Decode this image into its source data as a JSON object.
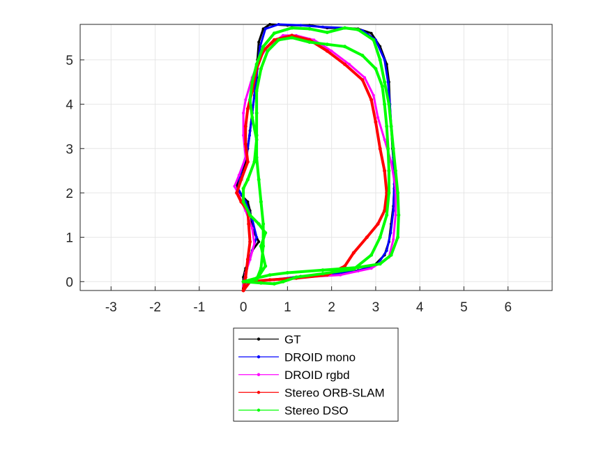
{
  "chart_data": {
    "type": "line",
    "title": "",
    "xlabel": "",
    "ylabel": "",
    "xlim": [
      -3.7,
      7.0
    ],
    "ylim": [
      -0.2,
      5.8
    ],
    "grid": true,
    "legend_position": "below-plot",
    "xticks": [
      -3,
      -2,
      -1,
      0,
      1,
      2,
      3,
      4,
      5,
      6
    ],
    "yticks": [
      0,
      1,
      2,
      3,
      4,
      5
    ],
    "xtick_labels": [
      "-3",
      "-2",
      "-1",
      "0",
      "1",
      "2",
      "3",
      "4",
      "5",
      "6"
    ],
    "ytick_labels": [
      "0",
      "1",
      "2",
      "3",
      "4",
      "5"
    ],
    "series": [
      {
        "name": "GT",
        "color": "#000000",
        "marker": "dot",
        "points": [
          [
            0.0,
            -0.15
          ],
          [
            0.0,
            0.1
          ],
          [
            0.05,
            0.3
          ],
          [
            0.15,
            0.5
          ],
          [
            0.2,
            0.7
          ],
          [
            0.35,
            0.9
          ],
          [
            0.25,
            1.1
          ],
          [
            0.2,
            1.3
          ],
          [
            0.15,
            1.6
          ],
          [
            0.1,
            1.8
          ],
          [
            -0.1,
            2.0
          ],
          [
            -0.15,
            2.2
          ],
          [
            -0.05,
            2.4
          ],
          [
            0.05,
            2.7
          ],
          [
            0.1,
            3.0
          ],
          [
            0.15,
            3.4
          ],
          [
            0.2,
            3.8
          ],
          [
            0.25,
            4.2
          ],
          [
            0.3,
            4.6
          ],
          [
            0.32,
            5.0
          ],
          [
            0.35,
            5.4
          ],
          [
            0.45,
            5.7
          ],
          [
            0.6,
            5.8
          ],
          [
            1.0,
            5.78
          ],
          [
            1.5,
            5.78
          ],
          [
            1.9,
            5.72
          ],
          [
            2.3,
            5.72
          ],
          [
            2.6,
            5.7
          ],
          [
            2.9,
            5.6
          ],
          [
            3.1,
            5.3
          ],
          [
            3.25,
            4.9
          ],
          [
            3.3,
            4.5
          ],
          [
            3.32,
            4.0
          ],
          [
            3.35,
            3.5
          ],
          [
            3.38,
            3.0
          ],
          [
            3.42,
            2.5
          ],
          [
            3.42,
            2.1
          ],
          [
            3.4,
            1.7
          ],
          [
            3.35,
            1.3
          ],
          [
            3.3,
            0.9
          ],
          [
            3.2,
            0.6
          ],
          [
            2.95,
            0.35
          ],
          [
            2.6,
            0.25
          ],
          [
            2.0,
            0.18
          ],
          [
            1.3,
            0.12
          ],
          [
            0.8,
            0.05
          ],
          [
            0.4,
            0.02
          ],
          [
            0.1,
            0.0
          ],
          [
            0.0,
            -0.15
          ]
        ]
      },
      {
        "name": "DROID mono",
        "color": "#0000ff",
        "marker": "dot",
        "points": [
          [
            0.02,
            0.0
          ],
          [
            0.08,
            0.3
          ],
          [
            0.2,
            0.7
          ],
          [
            0.3,
            1.0
          ],
          [
            0.2,
            1.4
          ],
          [
            0.05,
            1.8
          ],
          [
            -0.12,
            2.1
          ],
          [
            -0.05,
            2.5
          ],
          [
            0.08,
            2.9
          ],
          [
            0.14,
            3.3
          ],
          [
            0.2,
            3.8
          ],
          [
            0.26,
            4.3
          ],
          [
            0.32,
            4.8
          ],
          [
            0.38,
            5.3
          ],
          [
            0.5,
            5.7
          ],
          [
            0.8,
            5.8
          ],
          [
            1.3,
            5.78
          ],
          [
            1.8,
            5.74
          ],
          [
            2.3,
            5.72
          ],
          [
            2.7,
            5.66
          ],
          [
            3.0,
            5.45
          ],
          [
            3.2,
            5.0
          ],
          [
            3.28,
            4.5
          ],
          [
            3.32,
            4.0
          ],
          [
            3.36,
            3.4
          ],
          [
            3.4,
            2.8
          ],
          [
            3.42,
            2.2
          ],
          [
            3.4,
            1.6
          ],
          [
            3.34,
            1.1
          ],
          [
            3.25,
            0.7
          ],
          [
            3.05,
            0.4
          ],
          [
            2.6,
            0.24
          ],
          [
            1.9,
            0.16
          ],
          [
            1.2,
            0.1
          ],
          [
            0.6,
            0.04
          ],
          [
            0.2,
            0.0
          ],
          [
            0.02,
            0.0
          ]
        ]
      },
      {
        "name": "DROID rgbd",
        "color": "#ff00ff",
        "marker": "dot",
        "points": [
          [
            0.0,
            -0.1
          ],
          [
            0.05,
            0.2
          ],
          [
            0.15,
            0.5
          ],
          [
            0.25,
            0.85
          ],
          [
            0.2,
            1.2
          ],
          [
            0.05,
            1.6
          ],
          [
            -0.1,
            1.95
          ],
          [
            -0.2,
            2.15
          ],
          [
            -0.1,
            2.4
          ],
          [
            0.05,
            2.8
          ],
          [
            0.0,
            3.3
          ],
          [
            0.0,
            3.8
          ],
          [
            0.05,
            4.1
          ],
          [
            0.2,
            4.6
          ],
          [
            0.35,
            5.0
          ],
          [
            0.55,
            5.3
          ],
          [
            0.9,
            5.55
          ],
          [
            1.2,
            5.55
          ],
          [
            1.6,
            5.45
          ],
          [
            2.0,
            5.2
          ],
          [
            2.4,
            4.9
          ],
          [
            2.75,
            4.6
          ],
          [
            2.95,
            4.2
          ],
          [
            3.05,
            3.7
          ],
          [
            3.2,
            3.2
          ],
          [
            3.35,
            2.7
          ],
          [
            3.45,
            2.1
          ],
          [
            3.45,
            1.5
          ],
          [
            3.4,
            0.95
          ],
          [
            3.3,
            0.55
          ],
          [
            2.9,
            0.3
          ],
          [
            2.2,
            0.15
          ],
          [
            1.4,
            0.1
          ],
          [
            0.7,
            0.04
          ],
          [
            0.2,
            0.0
          ],
          [
            0.0,
            -0.1
          ]
        ]
      },
      {
        "name": "Stereo ORB-SLAM",
        "color": "#ff0000",
        "marker": "dot",
        "points": [
          [
            0.0,
            -0.2
          ],
          [
            0.05,
            0.1
          ],
          [
            0.1,
            0.5
          ],
          [
            0.15,
            0.9
          ],
          [
            0.12,
            1.3
          ],
          [
            0.1,
            1.6
          ],
          [
            -0.05,
            1.8
          ],
          [
            -0.15,
            2.0
          ],
          [
            -0.05,
            2.3
          ],
          [
            0.1,
            2.7
          ],
          [
            0.05,
            3.1
          ],
          [
            0.05,
            3.5
          ],
          [
            0.1,
            3.9
          ],
          [
            0.2,
            4.3
          ],
          [
            0.3,
            4.8
          ],
          [
            0.45,
            5.2
          ],
          [
            0.7,
            5.45
          ],
          [
            1.1,
            5.55
          ],
          [
            1.5,
            5.45
          ],
          [
            1.9,
            5.2
          ],
          [
            2.3,
            4.9
          ],
          [
            2.7,
            4.55
          ],
          [
            2.9,
            4.1
          ],
          [
            3.0,
            3.6
          ],
          [
            3.1,
            3.0
          ],
          [
            3.2,
            2.5
          ],
          [
            3.25,
            2.0
          ],
          [
            3.2,
            1.6
          ],
          [
            3.05,
            1.3
          ],
          [
            2.8,
            1.0
          ],
          [
            2.5,
            0.65
          ],
          [
            2.3,
            0.35
          ],
          [
            1.9,
            0.15
          ],
          [
            1.2,
            0.08
          ],
          [
            0.6,
            0.04
          ],
          [
            0.15,
            0.0
          ],
          [
            0.0,
            -0.2
          ]
        ]
      },
      {
        "name": "Stereo DSO",
        "color": "#00ff00",
        "marker": "dot",
        "points": [
          [
            0.0,
            0.0
          ],
          [
            0.3,
            0.05
          ],
          [
            0.5,
            0.35
          ],
          [
            0.4,
            0.8
          ],
          [
            0.5,
            1.1
          ],
          [
            0.35,
            1.3
          ],
          [
            0.15,
            1.5
          ],
          [
            0.0,
            1.8
          ],
          [
            0.0,
            2.1
          ],
          [
            0.1,
            2.3
          ],
          [
            0.25,
            2.7
          ],
          [
            0.3,
            3.2
          ],
          [
            0.2,
            3.7
          ],
          [
            0.15,
            4.1
          ],
          [
            0.2,
            4.5
          ],
          [
            0.3,
            4.9
          ],
          [
            0.45,
            5.3
          ],
          [
            0.7,
            5.6
          ],
          [
            1.1,
            5.72
          ],
          [
            1.5,
            5.7
          ],
          [
            1.9,
            5.62
          ],
          [
            2.3,
            5.72
          ],
          [
            2.6,
            5.68
          ],
          [
            2.95,
            5.45
          ],
          [
            3.1,
            5.0
          ],
          [
            3.2,
            4.5
          ],
          [
            3.3,
            4.0
          ],
          [
            3.35,
            3.5
          ],
          [
            3.4,
            3.0
          ],
          [
            3.45,
            2.5
          ],
          [
            3.5,
            2.0
          ],
          [
            3.52,
            1.5
          ],
          [
            3.5,
            1.0
          ],
          [
            3.35,
            0.6
          ],
          [
            3.1,
            0.4
          ],
          [
            2.6,
            0.32
          ],
          [
            1.8,
            0.26
          ],
          [
            1.0,
            0.2
          ],
          [
            0.6,
            0.15
          ],
          [
            0.3,
            0.08
          ],
          [
            0.0,
            0.0
          ],
          [
            0.4,
            -0.03
          ],
          [
            0.7,
            -0.05
          ],
          [
            0.9,
            0.0
          ],
          [
            1.2,
            0.1
          ],
          [
            1.8,
            0.18
          ],
          [
            2.5,
            0.28
          ],
          [
            2.9,
            0.6
          ],
          [
            3.1,
            1.0
          ],
          [
            3.25,
            1.5
          ],
          [
            3.3,
            2.0
          ],
          [
            3.3,
            2.5
          ],
          [
            3.28,
            3.0
          ],
          [
            3.25,
            3.5
          ],
          [
            3.2,
            4.0
          ],
          [
            3.15,
            4.4
          ],
          [
            3.0,
            4.8
          ],
          [
            2.7,
            5.1
          ],
          [
            2.3,
            5.3
          ],
          [
            1.9,
            5.35
          ],
          [
            1.5,
            5.4
          ],
          [
            1.1,
            5.5
          ],
          [
            0.8,
            5.45
          ],
          [
            0.55,
            5.2
          ],
          [
            0.4,
            4.8
          ],
          [
            0.3,
            4.3
          ],
          [
            0.3,
            3.8
          ],
          [
            0.3,
            3.3
          ],
          [
            0.3,
            2.8
          ],
          [
            0.35,
            2.3
          ],
          [
            0.4,
            1.8
          ],
          [
            0.45,
            1.3
          ],
          [
            0.45,
            0.8
          ],
          [
            0.4,
            0.3
          ],
          [
            0.3,
            0.05
          ]
        ]
      }
    ]
  }
}
